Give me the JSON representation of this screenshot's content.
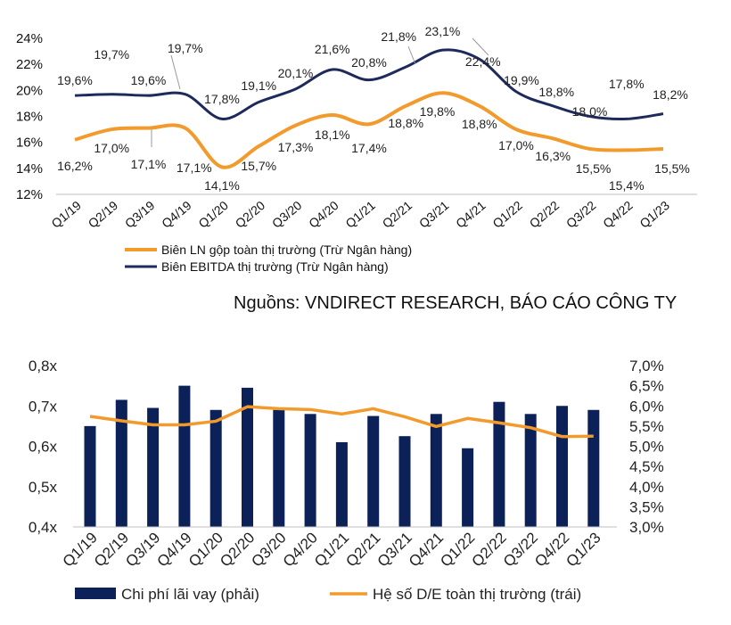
{
  "colors": {
    "navy": "#1f2a5c",
    "orange": "#f39a2c",
    "bar": "#0b2158"
  },
  "source_note": "Nguồns: VNDIRECT RESEARCH, BÁO CÁO CÔNG TY",
  "chart_data": [
    {
      "type": "line",
      "categories": [
        "Q1/19",
        "Q2/19",
        "Q3/19",
        "Q4/19",
        "Q1/20",
        "Q2/20",
        "Q3/20",
        "Q4/20",
        "Q1/21",
        "Q2/21",
        "Q3/21",
        "Q4/21",
        "Q1/22",
        "Q2/22",
        "Q3/22",
        "Q4/22",
        "Q1/23"
      ],
      "y_ticks": [
        "12%",
        "14%",
        "16%",
        "18%",
        "20%",
        "22%",
        "24%"
      ],
      "ylim": [
        12,
        24
      ],
      "grid": false,
      "legend_position": "bottom-left",
      "series": [
        {
          "name": "Biên LN gộp toàn thị trường (Trừ Ngân hàng)",
          "color": "#f39a2c",
          "values": [
            16.2,
            17.0,
            17.1,
            17.1,
            14.1,
            15.7,
            17.3,
            18.1,
            17.4,
            18.8,
            19.8,
            18.8,
            17.0,
            16.3,
            15.5,
            15.4,
            15.5
          ],
          "labels": [
            "16,2%",
            "17,0%",
            "17,1%",
            "17,1%",
            "14,1%",
            "15,7%",
            "17,3%",
            "18,1%",
            "17,4%",
            "18,8%",
            "19,8%",
            "18,8%",
            "17,0%",
            "16,3%",
            "15,5%",
            "15,4%",
            "15,5%"
          ]
        },
        {
          "name": "Biên EBITDA thị trường (Trừ Ngân hàng)",
          "color": "#1f2a5c",
          "values": [
            19.6,
            19.7,
            19.6,
            19.7,
            17.8,
            19.1,
            20.1,
            21.6,
            20.8,
            21.8,
            23.1,
            22.4,
            19.9,
            18.8,
            18.0,
            17.8,
            18.2
          ],
          "labels": [
            "19,6%",
            "19,7%",
            "19,6%",
            "19,7%",
            "17,8%",
            "19,1%",
            "20,1%",
            "21,6%",
            "20,8%",
            "21,8%",
            "23,1%",
            "22,4%",
            "19,9%",
            "18,8%",
            "18,0%",
            "17,8%",
            "18,2%"
          ]
        }
      ]
    },
    {
      "type": "bar",
      "categories": [
        "Q1/19",
        "Q2/19",
        "Q3/19",
        "Q4/19",
        "Q1/20",
        "Q2/20",
        "Q3/20",
        "Q4/20",
        "Q1/21",
        "Q2/21",
        "Q3/21",
        "Q4/21",
        "Q1/22",
        "Q2/22",
        "Q3/22",
        "Q4/22",
        "Q1/23"
      ],
      "left_ticks": [
        "0,4x",
        "0,5x",
        "0,6x",
        "0,7x",
        "0,8x"
      ],
      "left_lim": [
        0.4,
        0.8
      ],
      "right_ticks": [
        "3,0%",
        "3,5%",
        "4,0%",
        "4,5%",
        "5,0%",
        "5,5%",
        "6,0%",
        "6,5%",
        "7,0%"
      ],
      "right_lim": [
        3.0,
        7.0
      ],
      "grid": false,
      "legend_position": "bottom",
      "series": [
        {
          "name": "Chi phí lãi vay (phải)",
          "kind": "bar",
          "axis": "right",
          "color": "#0b2158",
          "values": [
            5.5,
            6.15,
            5.95,
            6.5,
            5.9,
            6.45,
            5.9,
            5.8,
            5.1,
            5.75,
            5.25,
            5.8,
            4.95,
            6.1,
            5.8,
            6.0,
            5.9
          ]
        },
        {
          "name": "Hệ số D/E toàn thị trường (trái)",
          "kind": "line",
          "axis": "left",
          "color": "#f39a2c",
          "values": [
            0.674,
            0.663,
            0.653,
            0.653,
            0.662,
            0.698,
            0.693,
            0.691,
            0.68,
            0.693,
            0.673,
            0.649,
            0.669,
            0.658,
            0.646,
            0.624,
            0.625
          ]
        }
      ]
    }
  ]
}
